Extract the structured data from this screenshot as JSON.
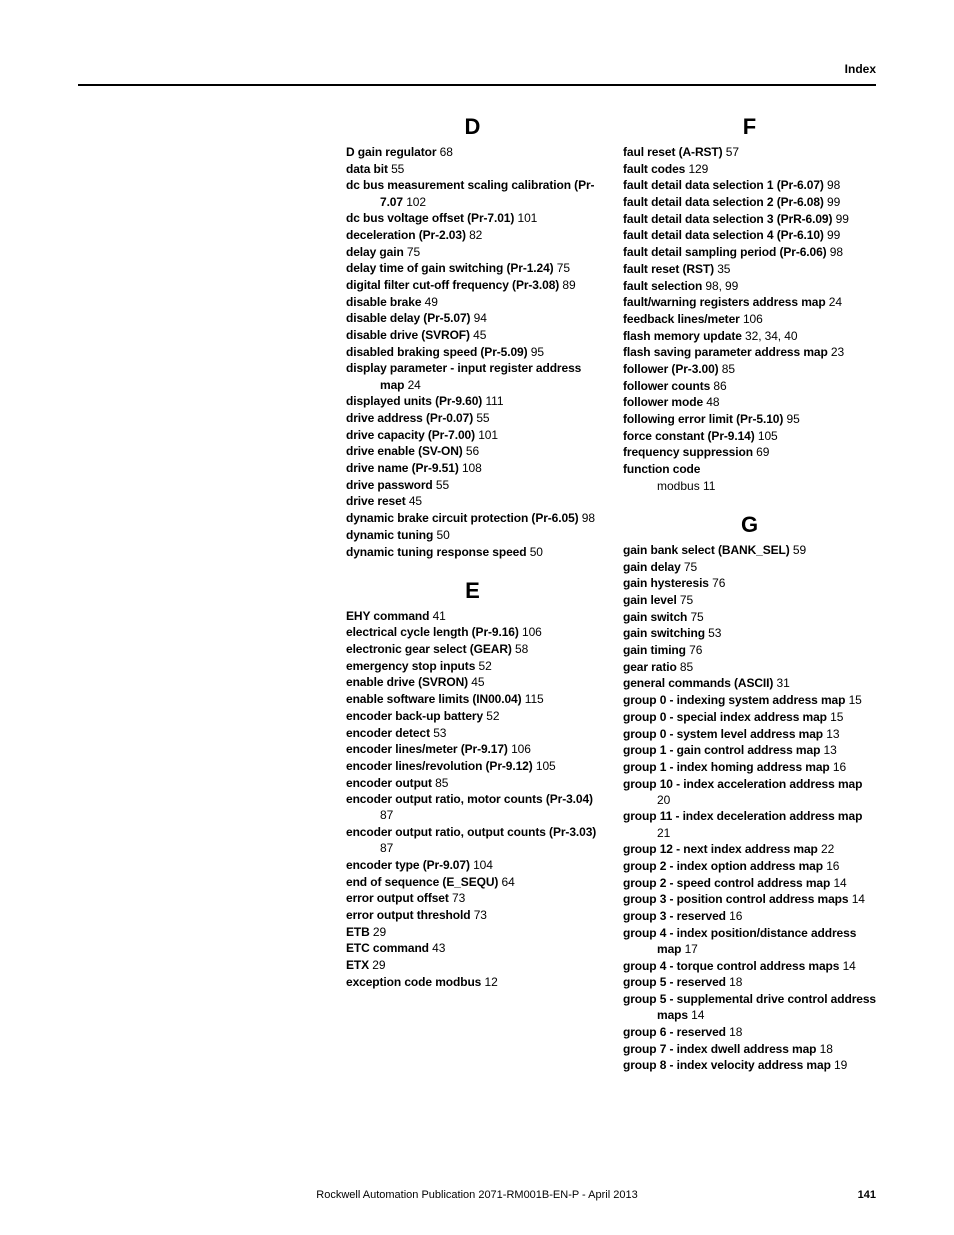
{
  "header": {
    "label": "Index"
  },
  "footer": {
    "publication": "Rockwell Automation Publication 2071-RM001B-EN-P - April 2013",
    "page": "141"
  },
  "left": {
    "D": {
      "letter": "D",
      "entries": [
        {
          "term": "D gain regulator",
          "pg": "68"
        },
        {
          "term": "data bit",
          "pg": "55"
        },
        {
          "term": "dc bus measurement scaling calibration (Pr-7.07",
          "pg": "102"
        },
        {
          "term": "dc bus voltage offset (Pr-7.01)",
          "pg": "101"
        },
        {
          "term": "deceleration (Pr-2.03)",
          "pg": "82"
        },
        {
          "term": "delay gain",
          "pg": "75"
        },
        {
          "term": "delay time of gain switching (Pr-1.24)",
          "pg": "75"
        },
        {
          "term": "digital filter cut-off frequency (Pr-3.08)",
          "pg": "89"
        },
        {
          "term": "disable brake",
          "pg": "49"
        },
        {
          "term": "disable delay (Pr-5.07)",
          "pg": "94"
        },
        {
          "term": "disable drive (SVROF)",
          "pg": "45"
        },
        {
          "term": "disabled braking speed (Pr-5.09)",
          "pg": "95"
        },
        {
          "term": "display parameter - input register address map",
          "pg": "24"
        },
        {
          "term": "displayed units (Pr-9.60)",
          "pg": "111"
        },
        {
          "term": "drive address (Pr-0.07)",
          "pg": "55"
        },
        {
          "term": "drive capacity (Pr-7.00)",
          "pg": "101"
        },
        {
          "term": "drive enable (SV-ON)",
          "pg": "56"
        },
        {
          "term": "drive name (Pr-9.51)",
          "pg": "108"
        },
        {
          "term": "drive password",
          "pg": "55"
        },
        {
          "term": "drive reset",
          "pg": "45"
        },
        {
          "term": "dynamic brake circuit protection (Pr-6.05)",
          "pg": "98"
        },
        {
          "term": "dynamic tuning",
          "pg": "50"
        },
        {
          "term": "dynamic tuning response speed",
          "pg": "50"
        }
      ]
    },
    "E": {
      "letter": "E",
      "entries": [
        {
          "term": "EHY command",
          "pg": "41"
        },
        {
          "term": "electrical cycle length (Pr-9.16)",
          "pg": "106"
        },
        {
          "term": "electronic gear select (GEAR)",
          "pg": "58"
        },
        {
          "term": "emergency stop inputs",
          "pg": "52"
        },
        {
          "term": "enable drive (SVRON)",
          "pg": "45"
        },
        {
          "term": "enable software limits (IN00.04)",
          "pg": "115"
        },
        {
          "term": "encoder back-up battery",
          "pg": "52"
        },
        {
          "term": "encoder detect",
          "pg": "53"
        },
        {
          "term": "encoder lines/meter (Pr-9.17)",
          "pg": "106"
        },
        {
          "term": "encoder lines/revolution (Pr-9.12)",
          "pg": "105"
        },
        {
          "term": "encoder output",
          "pg": "85"
        },
        {
          "term": "encoder output ratio, motor counts (Pr-3.04)",
          "pg": "87"
        },
        {
          "term": "encoder output ratio, output counts (Pr-3.03)",
          "pg": "87"
        },
        {
          "term": "encoder type (Pr-9.07)",
          "pg": "104"
        },
        {
          "term": "end of sequence (E_SEQU)",
          "pg": "64"
        },
        {
          "term": "error output offset",
          "pg": "73"
        },
        {
          "term": "error output threshold",
          "pg": "73"
        },
        {
          "term": "ETB",
          "pg": "29"
        },
        {
          "term": "ETC command",
          "pg": "43"
        },
        {
          "term": "ETX",
          "pg": "29"
        },
        {
          "term": "exception code modbus",
          "pg": "12"
        }
      ]
    }
  },
  "right": {
    "F": {
      "letter": "F",
      "entries": [
        {
          "term": "faul reset (A-RST)",
          "pg": "57"
        },
        {
          "term": "fault codes",
          "pg": "129"
        },
        {
          "term": "fault detail data selection 1 (Pr-6.07)",
          "pg": "98"
        },
        {
          "term": "fault detail data selection 2 (Pr-6.08)",
          "pg": "99"
        },
        {
          "term": "fault detail data selection 3 (PrR-6.09)",
          "pg": "99"
        },
        {
          "term": "fault detail data selection 4 (Pr-6.10)",
          "pg": "99"
        },
        {
          "term": "fault detail sampling period (Pr-6.06)",
          "pg": "98"
        },
        {
          "term": "fault reset (RST)",
          "pg": "35"
        },
        {
          "term": "fault selection",
          "pg": "98, 99"
        },
        {
          "term": "fault/warning registers address map",
          "pg": "24"
        },
        {
          "term": "feedback lines/meter",
          "pg": "106"
        },
        {
          "term": "flash memory update",
          "pg": "32, 34, 40"
        },
        {
          "term": "flash saving parameter address map",
          "pg": "23"
        },
        {
          "term": "follower (Pr-3.00)",
          "pg": "85"
        },
        {
          "term": "follower counts",
          "pg": "86"
        },
        {
          "term": "follower mode",
          "pg": "48"
        },
        {
          "term": "following error limit (Pr-5.10)",
          "pg": "95"
        },
        {
          "term": "force constant (Pr-9.14)",
          "pg": "105"
        },
        {
          "term": "frequency suppression",
          "pg": "69"
        },
        {
          "term": "function code",
          "pg": "",
          "sub": "modbus 11"
        }
      ]
    },
    "G": {
      "letter": "G",
      "entries": [
        {
          "term": "gain bank select (BANK_SEL)",
          "pg": "59"
        },
        {
          "term": "gain delay",
          "pg": "75"
        },
        {
          "term": "gain hysteresis",
          "pg": "76"
        },
        {
          "term": "gain level",
          "pg": "75"
        },
        {
          "term": "gain switch",
          "pg": "75"
        },
        {
          "term": "gain switching",
          "pg": "53"
        },
        {
          "term": "gain timing",
          "pg": "76"
        },
        {
          "term": "gear ratio",
          "pg": "85"
        },
        {
          "term": "general commands (ASCII)",
          "pg": "31"
        },
        {
          "term": "group 0 - indexing system address map",
          "pg": "15"
        },
        {
          "term": "group 0 - special index address map",
          "pg": "15"
        },
        {
          "term": "group 0 - system level address map",
          "pg": "13"
        },
        {
          "term": "group 1 - gain control address map",
          "pg": "13"
        },
        {
          "term": "group 1 - index homing address map",
          "pg": "16"
        },
        {
          "term": "group 10 - index acceleration address map",
          "pg": "20"
        },
        {
          "term": "group 11 - index deceleration address map",
          "pg": "21"
        },
        {
          "term": "group 12 - next index address map",
          "pg": "22"
        },
        {
          "term": "group 2 - index option address map",
          "pg": "16"
        },
        {
          "term": "group 2 - speed control address map",
          "pg": "14"
        },
        {
          "term": "group 3 - position control address maps",
          "pg": "14"
        },
        {
          "term": "group 3 - reserved",
          "pg": "16"
        },
        {
          "term": "group 4 - index position/distance address map",
          "pg": "17"
        },
        {
          "term": "group 4 - torque control address maps",
          "pg": "14"
        },
        {
          "term": "group 5 - reserved",
          "pg": "18"
        },
        {
          "term": "group 5 - supplemental drive control address maps",
          "pg": "14"
        },
        {
          "term": "group 6 - reserved",
          "pg": "18"
        },
        {
          "term": "group 7 - index dwell address map",
          "pg": "18"
        },
        {
          "term": "group 8 - index velocity address map",
          "pg": "19"
        }
      ]
    }
  }
}
